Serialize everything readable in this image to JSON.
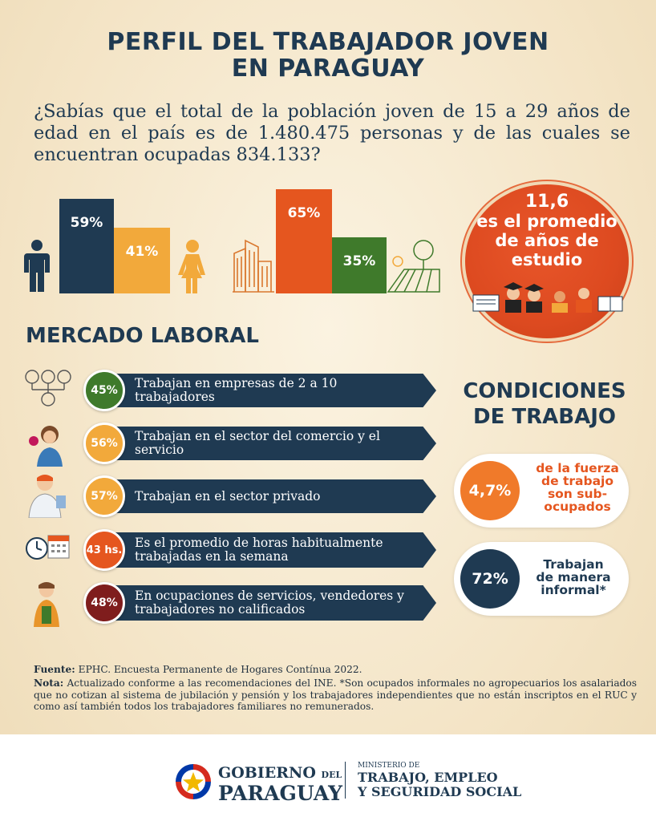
{
  "title_line1": "PERFIL DEL TRABAJADOR JOVEN",
  "title_line2": "EN PARAGUAY",
  "intro": "¿Sabías que el total de la población joven de 15 a 29 años de edad en el país es de 1.480.475 personas y de las cuales se encuentran ocupadas 834.133?",
  "colors": {
    "navy": "#1f3a52",
    "orange": "#e5561f",
    "yellow": "#f2a93b",
    "green": "#3f7a2b",
    "maroon": "#7f1d1d"
  },
  "chart_data": [
    {
      "type": "bar",
      "categories": [
        "hombre",
        "mujer"
      ],
      "values": [
        59,
        41
      ],
      "labels": [
        "59%",
        "41%"
      ],
      "colors": [
        "#1f3a52",
        "#f2a93b"
      ]
    },
    {
      "type": "bar",
      "categories": [
        "urbano",
        "rural"
      ],
      "values": [
        65,
        35
      ],
      "labels": [
        "65%",
        "35%"
      ],
      "colors": [
        "#e5561f",
        "#3f7a2b"
      ]
    }
  ],
  "study": {
    "line1": "11,6",
    "line2": "es el promedio",
    "line3": "de años de",
    "line4": "estudio"
  },
  "mercado": {
    "title": "MERCADO LABORAL",
    "items": [
      {
        "value": "45%",
        "text": "Trabajan en empresas de 2 a 10 trabajadores",
        "color": "#3f7a2b",
        "icon": "people-network-icon"
      },
      {
        "value": "56%",
        "text": "Trabajan en el sector del comercio y el servicio",
        "color": "#f2a93b",
        "icon": "phone-worker-icon"
      },
      {
        "value": "57%",
        "text": "Trabajan en el sector privado",
        "color": "#f2a93b",
        "icon": "office-worker-icon"
      },
      {
        "value": "43 hs.",
        "text": "Es el promedio de horas habitualmente trabajadas en la semana",
        "color": "#e5561f",
        "icon": "clock-calendar-icon"
      },
      {
        "value": "48%",
        "text": "En ocupaciones de servicios, vendedores y trabajadores no calificados",
        "color": "#7f1d1d",
        "icon": "vendor-icon"
      }
    ]
  },
  "condiciones": {
    "title_line1": "CONDICIONES",
    "title_line2": "DE TRABAJO",
    "items": [
      {
        "value": "4,7%",
        "line1": "de la fuerza",
        "line2": "de trabajo",
        "line3": "son sub-",
        "line4": "ocupados",
        "color": "#f07a2a"
      },
      {
        "value": "72%",
        "line1": "Trabajan",
        "line2": "de manera",
        "line3": "informal*",
        "color": "#1f3a52"
      }
    ]
  },
  "footnotes": {
    "fuente_label": "Fuente:",
    "fuente_text": " EPHC. Encuesta Permanente de Hogares Contínua 2022.",
    "nota_label": "Nota:",
    "nota_text": " Actualizado conforme a las recomendaciones del INE. *Son ocupados informales no agropecuarios los asalariados que no cotizan al sistema de jubilación y pensión y los trabajadores independientes que no están  inscriptos en el RUC y como así también todos los trabajadores familiares no remunerados."
  },
  "logo": {
    "gob_line1a": "GOBIERNO",
    "gob_line1b": "DEL",
    "gob_line2": "PARAGUAY",
    "min_line1": "MINISTERIO DE",
    "min_line2": "TRABAJO, EMPLEO",
    "min_line3": "Y SEGURIDAD SOCIAL"
  }
}
